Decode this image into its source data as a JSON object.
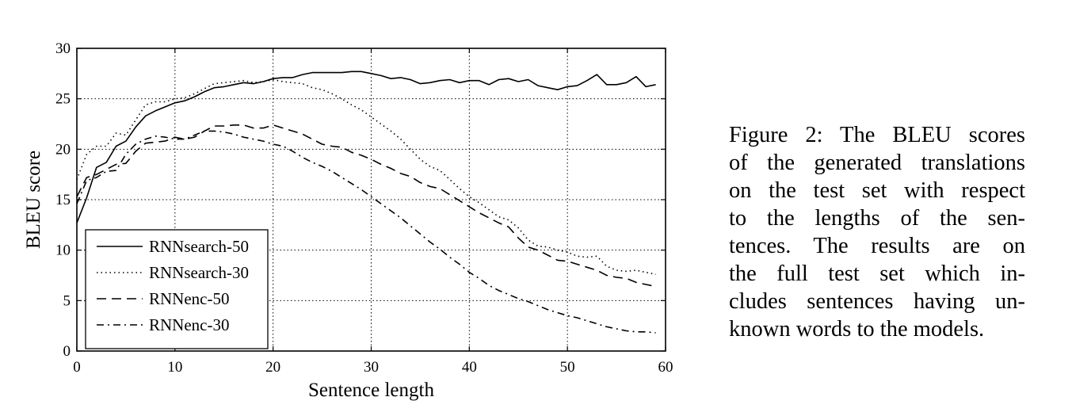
{
  "chart_data": {
    "type": "line",
    "xlabel": "Sentence length",
    "ylabel": "BLEU score",
    "xlim": [
      0,
      60
    ],
    "ylim": [
      0,
      30
    ],
    "xticks": [
      0,
      10,
      20,
      30,
      40,
      50,
      60
    ],
    "yticks": [
      0,
      5,
      10,
      15,
      20,
      25,
      30
    ],
    "grid": true,
    "legend_position": "lower-left",
    "series": [
      {
        "name": "RNNsearch-50",
        "style": "solid",
        "color": "#000000",
        "x": [
          0,
          1,
          2,
          3,
          4,
          5,
          6,
          7,
          8,
          9,
          10,
          11,
          12,
          13,
          14,
          15,
          16,
          17,
          18,
          19,
          20,
          21,
          22,
          23,
          24,
          25,
          26,
          27,
          28,
          29,
          30,
          31,
          32,
          33,
          34,
          35,
          36,
          37,
          38,
          39,
          40,
          41,
          42,
          43,
          44,
          45,
          46,
          47,
          48,
          49,
          50,
          51,
          52,
          53,
          54,
          55,
          56,
          57,
          58,
          59
        ],
        "values": [
          12.7,
          15.2,
          18.2,
          18.7,
          20.3,
          20.8,
          22.2,
          23.3,
          23.8,
          24.2,
          24.6,
          24.8,
          25.2,
          25.7,
          26.1,
          26.2,
          26.4,
          26.6,
          26.5,
          26.7,
          27.0,
          27.1,
          27.1,
          27.4,
          27.6,
          27.6,
          27.6,
          27.6,
          27.7,
          27.7,
          27.5,
          27.3,
          27.0,
          27.1,
          26.9,
          26.5,
          26.6,
          26.8,
          26.9,
          26.6,
          26.8,
          26.8,
          26.4,
          26.9,
          27.0,
          26.7,
          26.9,
          26.3,
          26.1,
          25.9,
          26.2,
          26.3,
          26.8,
          27.4,
          26.4,
          26.4,
          26.6,
          27.2,
          26.2,
          26.4
        ]
      },
      {
        "name": "RNNsearch-30",
        "style": "dotted",
        "color": "#000000",
        "x": [
          0,
          1,
          2,
          3,
          4,
          5,
          6,
          7,
          8,
          9,
          10,
          11,
          12,
          13,
          14,
          15,
          16,
          17,
          18,
          19,
          20,
          21,
          22,
          23,
          24,
          25,
          26,
          27,
          28,
          29,
          30,
          31,
          32,
          33,
          34,
          35,
          36,
          37,
          38,
          39,
          40,
          41,
          42,
          43,
          44,
          45,
          46,
          47,
          48,
          49,
          50,
          51,
          52,
          53,
          54,
          55,
          56,
          57,
          58,
          59
        ],
        "values": [
          17.0,
          19.5,
          20.3,
          20.3,
          21.6,
          21.4,
          22.9,
          24.4,
          24.7,
          24.7,
          25.0,
          25.1,
          25.5,
          26.0,
          26.5,
          26.6,
          26.7,
          26.8,
          26.6,
          26.7,
          26.9,
          26.7,
          26.6,
          26.5,
          26.1,
          25.9,
          25.5,
          25.0,
          24.4,
          23.9,
          23.2,
          22.5,
          21.8,
          21.0,
          20.0,
          19.0,
          18.3,
          17.9,
          17.0,
          16.1,
          15.3,
          14.7,
          14.0,
          13.3,
          13.0,
          12.2,
          11.0,
          10.4,
          10.3,
          10.0,
          9.8,
          9.4,
          9.3,
          9.4,
          8.4,
          8.0,
          7.9,
          8.0,
          7.8,
          7.6
        ]
      },
      {
        "name": "RNNenc-50",
        "style": "dashed",
        "color": "#000000",
        "x": [
          0,
          1,
          2,
          3,
          4,
          5,
          6,
          7,
          8,
          9,
          10,
          11,
          12,
          13,
          14,
          15,
          16,
          17,
          18,
          19,
          20,
          21,
          22,
          23,
          24,
          25,
          26,
          27,
          28,
          29,
          30,
          31,
          32,
          33,
          34,
          35,
          36,
          37,
          38,
          39,
          40,
          41,
          42,
          43,
          44,
          45,
          46,
          47,
          48,
          49,
          50,
          51,
          52,
          53,
          54,
          55,
          56,
          57,
          58,
          59
        ],
        "values": [
          15.3,
          17.2,
          17.5,
          18.0,
          18.5,
          18.6,
          19.8,
          20.6,
          20.7,
          20.8,
          21.2,
          21.0,
          21.2,
          21.8,
          22.3,
          22.3,
          22.4,
          22.4,
          22.1,
          22.1,
          22.4,
          22.1,
          21.8,
          21.5,
          21.0,
          20.5,
          20.3,
          20.2,
          19.7,
          19.4,
          19.0,
          18.5,
          18.1,
          17.6,
          17.3,
          16.7,
          16.3,
          16.1,
          15.5,
          14.9,
          14.3,
          13.7,
          13.2,
          12.7,
          12.3,
          11.2,
          10.3,
          10.0,
          9.5,
          9.0,
          8.9,
          8.6,
          8.3,
          8.0,
          7.5,
          7.3,
          7.2,
          6.8,
          6.6,
          6.4
        ]
      },
      {
        "name": "RNNenc-30",
        "style": "dashdot",
        "color": "#000000",
        "x": [
          0,
          1,
          2,
          3,
          4,
          5,
          6,
          7,
          8,
          9,
          10,
          11,
          12,
          13,
          14,
          15,
          16,
          17,
          18,
          19,
          20,
          21,
          22,
          23,
          24,
          25,
          26,
          27,
          28,
          29,
          30,
          31,
          32,
          33,
          34,
          35,
          36,
          37,
          38,
          39,
          40,
          41,
          42,
          43,
          44,
          45,
          46,
          47,
          48,
          49,
          50,
          51,
          52,
          53,
          54,
          55,
          56,
          57,
          58,
          59
        ],
        "values": [
          14.6,
          16.9,
          17.2,
          17.8,
          17.9,
          19.5,
          20.5,
          21.0,
          21.3,
          21.2,
          21.0,
          21.0,
          21.4,
          21.8,
          21.8,
          21.7,
          21.5,
          21.2,
          21.0,
          20.8,
          20.5,
          20.3,
          19.8,
          19.2,
          18.7,
          18.3,
          17.8,
          17.2,
          16.6,
          16.0,
          15.3,
          14.6,
          13.9,
          13.2,
          12.4,
          11.6,
          10.8,
          10.1,
          9.3,
          8.6,
          7.8,
          7.2,
          6.5,
          6.0,
          5.6,
          5.2,
          4.9,
          4.5,
          4.1,
          3.8,
          3.5,
          3.3,
          3.0,
          2.7,
          2.4,
          2.2,
          2.0,
          1.9,
          1.9,
          1.8
        ]
      }
    ]
  },
  "caption": {
    "lines": [
      "Figure 2:  The BLEU scores",
      "of the generated translations",
      "on the test set with respect",
      "to the lengths of the sen-",
      "tences.  The results are on",
      "the full test set which in-",
      "cludes sentences having un-",
      "known words to the models."
    ]
  }
}
